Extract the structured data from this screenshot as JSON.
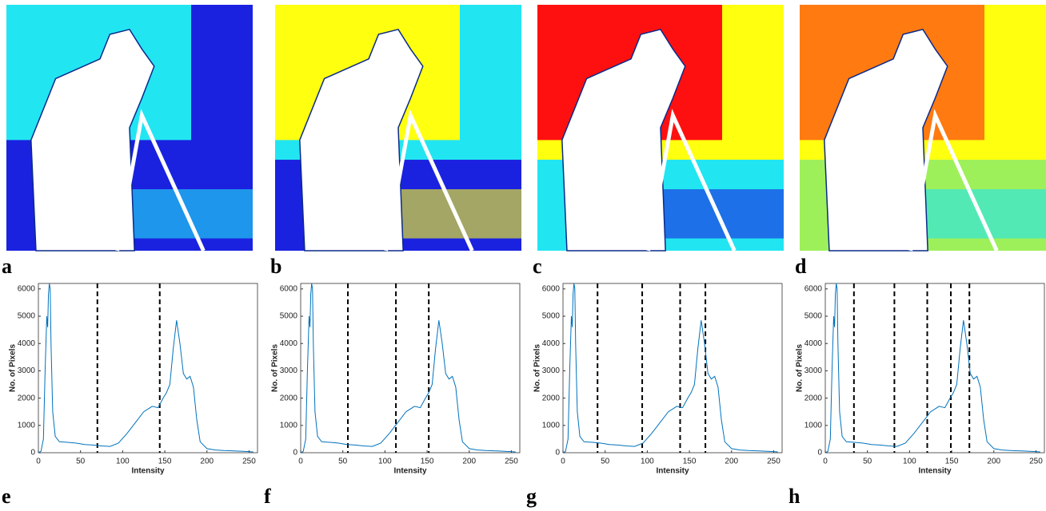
{
  "images": [
    {
      "label": "a"
    },
    {
      "label": "b"
    },
    {
      "label": "c"
    },
    {
      "label": "d"
    }
  ],
  "chart_data": [
    {
      "type": "line",
      "panel_label": "e",
      "xlabel": "Intensity",
      "ylabel": "No. of Pixels",
      "x": [
        0,
        3,
        6,
        8,
        10,
        11,
        12,
        13,
        14,
        15,
        17,
        20,
        25,
        35,
        45,
        55,
        65,
        75,
        85,
        95,
        105,
        115,
        125,
        135,
        142,
        148,
        152,
        156,
        160,
        164,
        168,
        172,
        176,
        180,
        184,
        188,
        192,
        200,
        210,
        220,
        235,
        250,
        255
      ],
      "series": [
        {
          "color": "#0072bd",
          "values": [
            0,
            50,
            500,
            3000,
            5000,
            4600,
            5800,
            6200,
            6000,
            4000,
            1500,
            600,
            400,
            380,
            350,
            300,
            280,
            250,
            230,
            350,
            700,
            1100,
            1500,
            1700,
            1650,
            2000,
            2200,
            2500,
            3800,
            4850,
            4000,
            2900,
            2700,
            2800,
            2400,
            1200,
            400,
            150,
            100,
            80,
            60,
            40,
            30
          ]
        }
      ],
      "thresholds": [
        70,
        144
      ],
      "xlim": [
        0,
        260
      ],
      "ylim": [
        0,
        6200
      ],
      "xticks": [
        0,
        50,
        100,
        150,
        200,
        250
      ],
      "yticks": [
        0,
        1000,
        2000,
        3000,
        4000,
        5000,
        6000
      ]
    },
    {
      "type": "line",
      "panel_label": "f",
      "xlabel": "Intensity",
      "ylabel": "No. of Pixels",
      "x": [
        0,
        3,
        6,
        8,
        10,
        11,
        12,
        13,
        14,
        15,
        17,
        20,
        25,
        35,
        45,
        55,
        65,
        75,
        85,
        95,
        105,
        115,
        125,
        135,
        142,
        148,
        152,
        156,
        160,
        164,
        168,
        172,
        176,
        180,
        184,
        188,
        192,
        200,
        210,
        220,
        235,
        250,
        255
      ],
      "series": [
        {
          "color": "#0072bd",
          "values": [
            0,
            50,
            500,
            3000,
            5000,
            4600,
            5800,
            6200,
            6000,
            4000,
            1500,
            600,
            400,
            380,
            350,
            300,
            280,
            250,
            230,
            350,
            700,
            1100,
            1500,
            1700,
            1650,
            2000,
            2200,
            2500,
            3800,
            4850,
            4000,
            2900,
            2700,
            2800,
            2400,
            1200,
            400,
            150,
            100,
            80,
            60,
            40,
            30
          ]
        }
      ],
      "thresholds": [
        56,
        113,
        152
      ],
      "xlim": [
        0,
        260
      ],
      "ylim": [
        0,
        6200
      ],
      "xticks": [
        0,
        50,
        100,
        150,
        200,
        250
      ],
      "yticks": [
        0,
        1000,
        2000,
        3000,
        4000,
        5000,
        6000
      ]
    },
    {
      "type": "line",
      "panel_label": "g",
      "xlabel": "Intensity",
      "ylabel": "No. of Pixels",
      "x": [
        0,
        3,
        6,
        8,
        10,
        11,
        12,
        13,
        14,
        15,
        17,
        20,
        25,
        35,
        45,
        55,
        65,
        75,
        85,
        95,
        105,
        115,
        125,
        135,
        142,
        148,
        152,
        156,
        160,
        164,
        168,
        172,
        176,
        180,
        184,
        188,
        192,
        200,
        210,
        220,
        235,
        250,
        255
      ],
      "series": [
        {
          "color": "#0072bd",
          "values": [
            0,
            50,
            500,
            3000,
            5000,
            4600,
            5800,
            6200,
            6000,
            4000,
            1500,
            600,
            400,
            380,
            350,
            300,
            280,
            250,
            230,
            350,
            700,
            1100,
            1500,
            1700,
            1650,
            2000,
            2200,
            2500,
            3800,
            4850,
            4000,
            2900,
            2700,
            2800,
            2400,
            1200,
            400,
            150,
            100,
            80,
            60,
            40,
            30
          ]
        }
      ],
      "thresholds": [
        41,
        94,
        139,
        169
      ],
      "xlim": [
        0,
        260
      ],
      "ylim": [
        0,
        6200
      ],
      "xticks": [
        0,
        50,
        100,
        150,
        200,
        250
      ],
      "yticks": [
        0,
        1000,
        2000,
        3000,
        4000,
        5000,
        6000
      ]
    },
    {
      "type": "line",
      "panel_label": "h",
      "xlabel": "Intensity",
      "ylabel": "No. of Pixels",
      "x": [
        0,
        3,
        6,
        8,
        10,
        11,
        12,
        13,
        14,
        15,
        17,
        20,
        25,
        35,
        45,
        55,
        65,
        75,
        85,
        95,
        105,
        115,
        125,
        135,
        142,
        148,
        152,
        156,
        160,
        164,
        168,
        172,
        176,
        180,
        184,
        188,
        192,
        200,
        210,
        220,
        235,
        250,
        255
      ],
      "series": [
        {
          "color": "#0072bd",
          "values": [
            0,
            50,
            500,
            3000,
            5000,
            4600,
            5800,
            6200,
            6000,
            4000,
            1500,
            600,
            400,
            380,
            350,
            300,
            280,
            250,
            230,
            350,
            700,
            1100,
            1500,
            1700,
            1650,
            2000,
            2200,
            2500,
            3800,
            4850,
            4000,
            2900,
            2700,
            2800,
            2400,
            1200,
            400,
            150,
            100,
            80,
            60,
            40,
            30
          ]
        }
      ],
      "thresholds": [
        34,
        82,
        121,
        149,
        171
      ],
      "xlim": [
        0,
        260
      ],
      "ylim": [
        0,
        6200
      ],
      "xticks": [
        0,
        50,
        100,
        150,
        200,
        250
      ],
      "yticks": [
        0,
        1000,
        2000,
        3000,
        4000,
        5000,
        6000
      ]
    }
  ]
}
